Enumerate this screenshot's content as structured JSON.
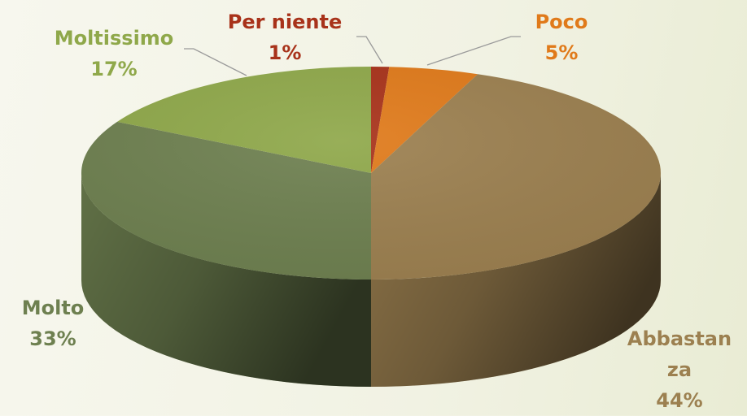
{
  "chart_data": {
    "type": "pie",
    "categories": [
      "Per niente",
      "Poco",
      "Abbastanza",
      "Molto",
      "Moltissimo"
    ],
    "values": [
      1,
      5,
      44,
      33,
      17
    ],
    "value_labels": [
      "1%",
      "5%",
      "44%",
      "33%",
      "17%"
    ],
    "colors": [
      "#a8321a",
      "#e07a1a",
      "#9c8050",
      "#6e8050",
      "#8fa84a"
    ],
    "legend": false
  }
}
